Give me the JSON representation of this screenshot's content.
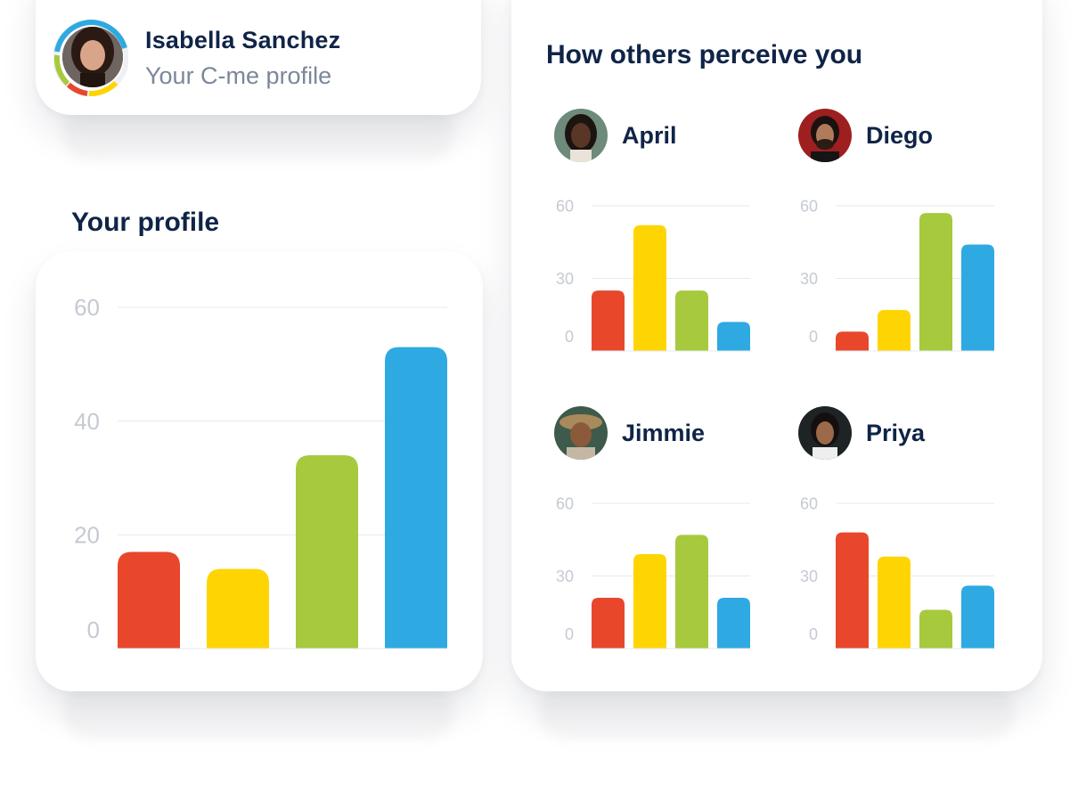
{
  "profile": {
    "name": "Isabella Sanchez",
    "subtitle": "Your C-me profile"
  },
  "your_profile": {
    "heading": "Your profile"
  },
  "others": {
    "heading": "How others perceive you",
    "people": [
      {
        "name": "April"
      },
      {
        "name": "Diego"
      },
      {
        "name": "Jimmie"
      },
      {
        "name": "Priya"
      }
    ]
  },
  "colors": {
    "red": "#e8472b",
    "yellow": "#fed503",
    "green": "#a6c93e",
    "blue": "#2ea9e2",
    "navy": "#0f2447",
    "gray_text": "#7b8799",
    "tick_text": "#c5cad2",
    "grid": "#e6e9ee"
  },
  "icons": [
    "avatar-isabella",
    "avatar-april",
    "avatar-diego",
    "avatar-jimmie",
    "avatar-priya"
  ],
  "chart_data": [
    {
      "type": "bar",
      "title": "Your profile",
      "categories": [
        "red",
        "yellow",
        "green",
        "blue"
      ],
      "values": [
        17,
        14,
        34,
        53
      ],
      "yticks": [
        "0",
        "20",
        "40",
        "60"
      ],
      "ylim": [
        0,
        60
      ],
      "grid": true
    },
    {
      "type": "bar",
      "title": "April",
      "categories": [
        "red",
        "yellow",
        "green",
        "blue"
      ],
      "values": [
        25,
        52,
        25,
        12
      ],
      "yticks": [
        "0",
        "30",
        "60"
      ],
      "ylim": [
        0,
        60
      ],
      "grid": true
    },
    {
      "type": "bar",
      "title": "Diego",
      "categories": [
        "red",
        "yellow",
        "green",
        "blue"
      ],
      "values": [
        8,
        17,
        57,
        44
      ],
      "yticks": [
        "0",
        "30",
        "60"
      ],
      "ylim": [
        0,
        60
      ],
      "grid": true
    },
    {
      "type": "bar",
      "title": "Jimmie",
      "categories": [
        "red",
        "yellow",
        "green",
        "blue"
      ],
      "values": [
        21,
        39,
        47,
        21
      ],
      "yticks": [
        "0",
        "30",
        "60"
      ],
      "ylim": [
        0,
        60
      ],
      "grid": true
    },
    {
      "type": "bar",
      "title": "Priya",
      "categories": [
        "red",
        "yellow",
        "green",
        "blue"
      ],
      "values": [
        48,
        38,
        16,
        26
      ],
      "yticks": [
        "0",
        "30",
        "60"
      ],
      "ylim": [
        0,
        60
      ],
      "grid": true
    }
  ]
}
